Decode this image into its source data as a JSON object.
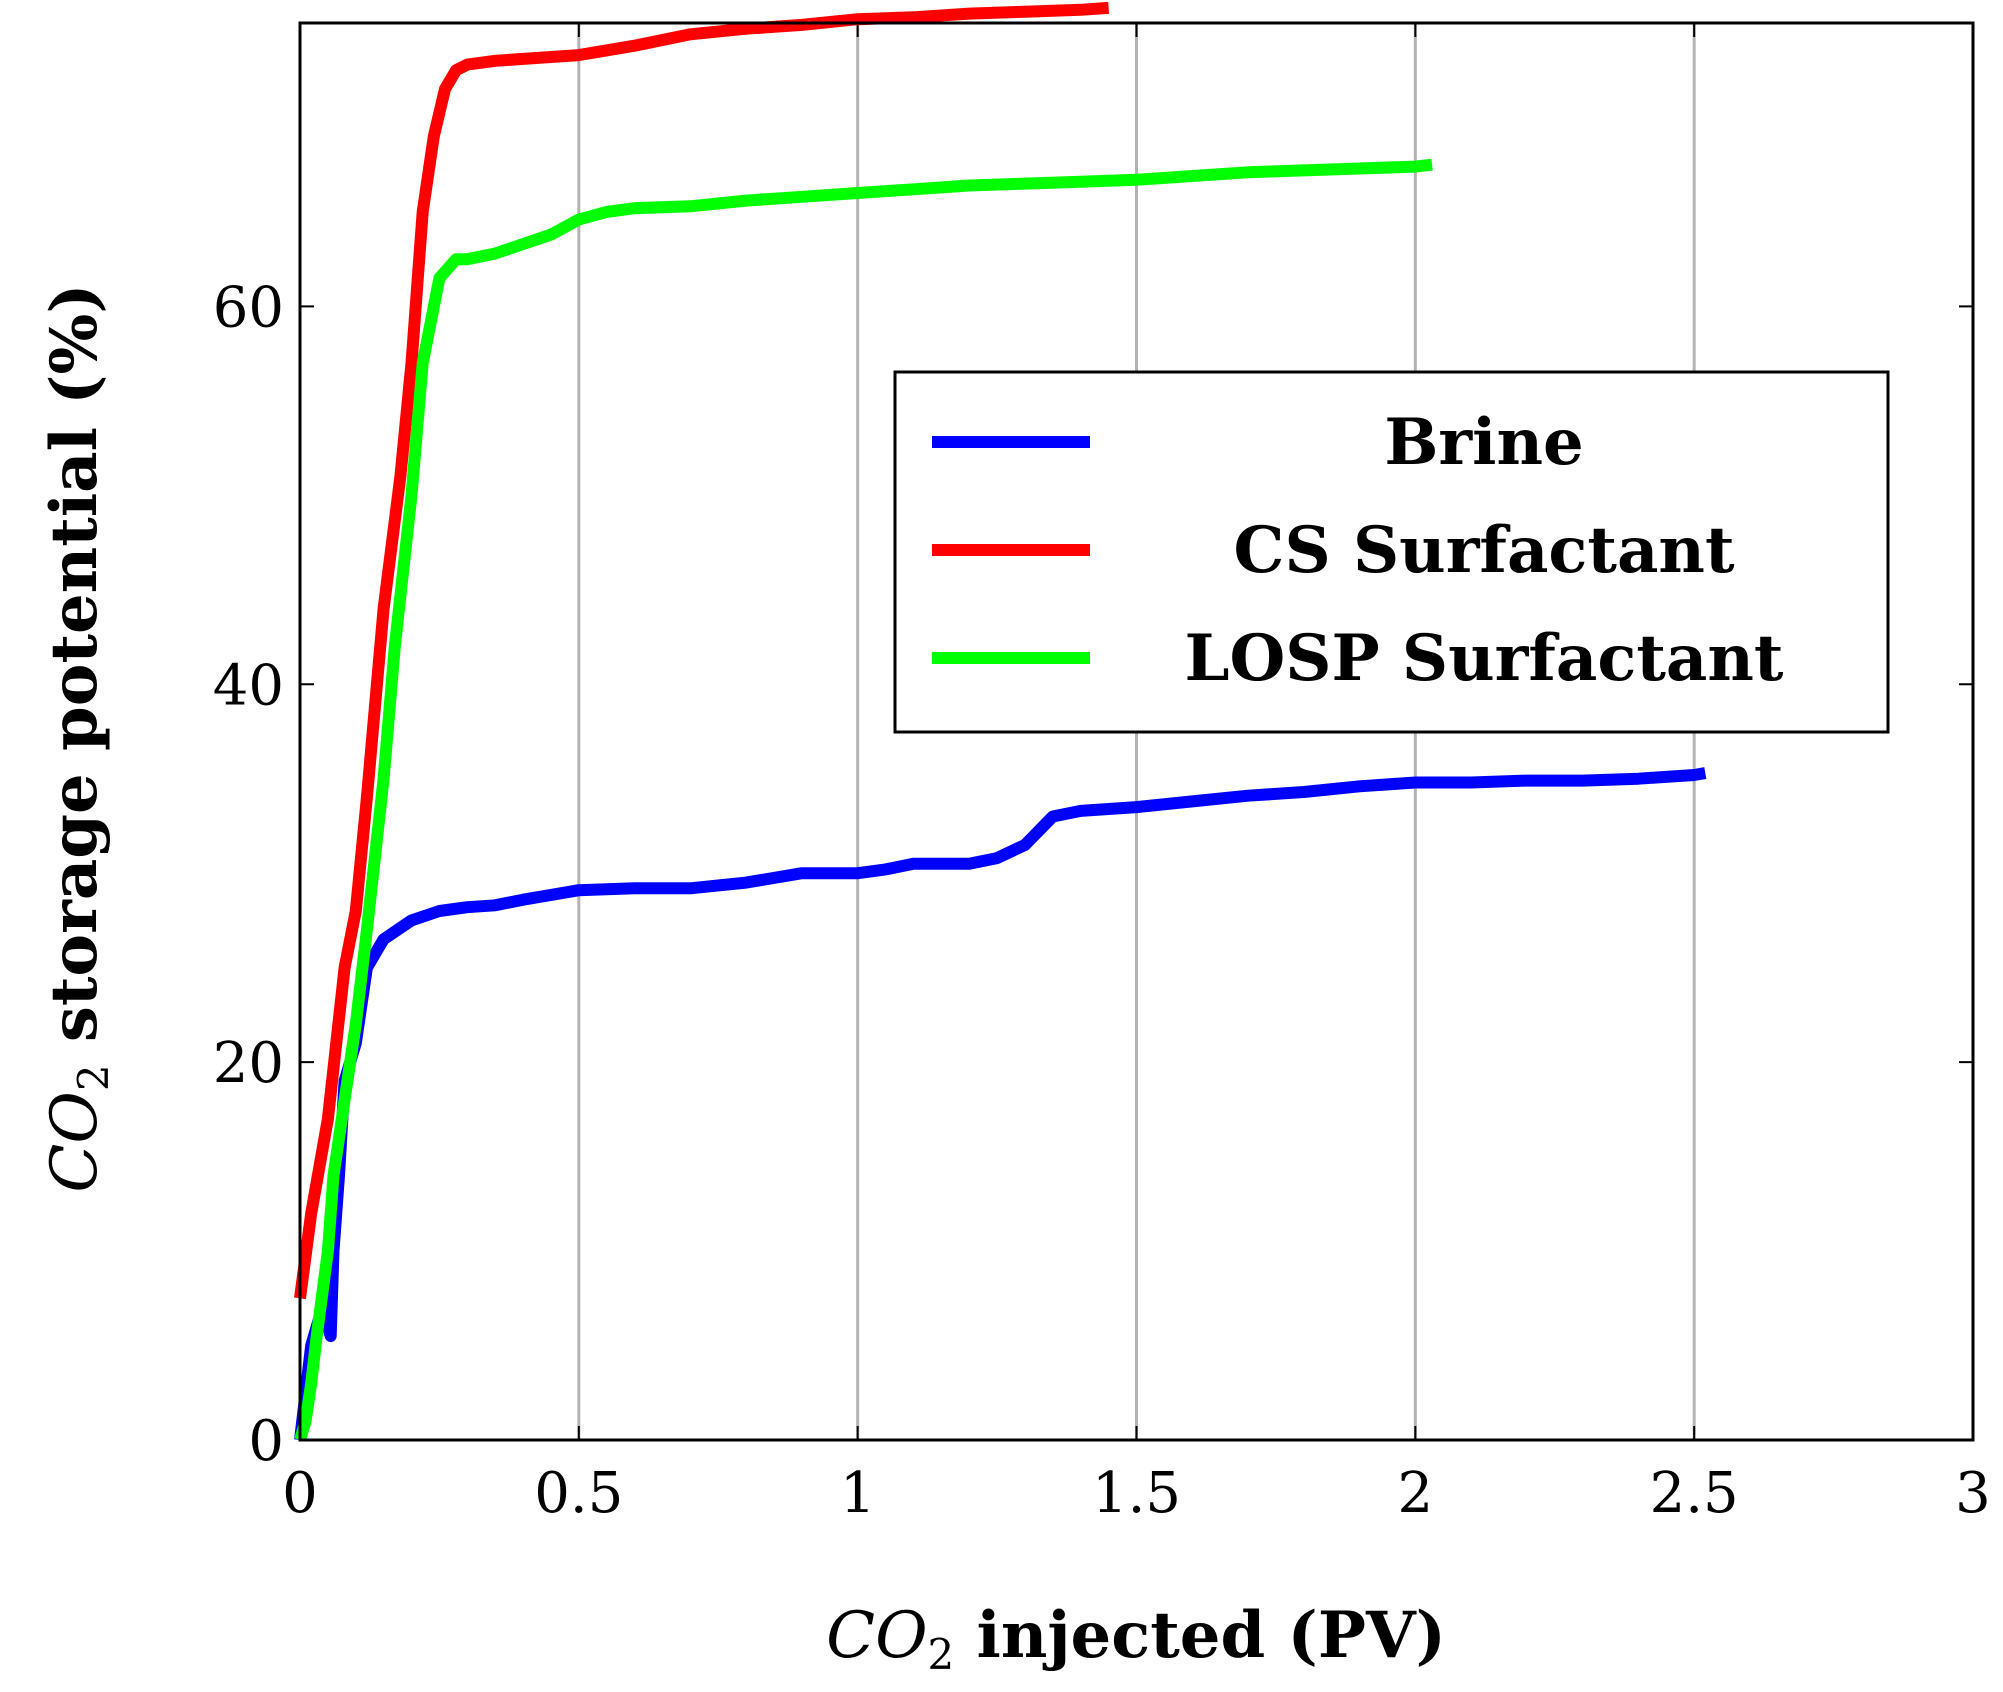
{
  "chart_data": {
    "type": "line",
    "title": "",
    "xlabel": {
      "symbol": "CO",
      "subscript": "2",
      "text": " injected (PV)"
    },
    "ylabel": {
      "symbol": "CO",
      "subscript": "2",
      "text": " storage potential (%)"
    },
    "xlim": [
      0,
      3
    ],
    "ylim": [
      0,
      75
    ],
    "xticks": [
      0,
      0.5,
      1,
      1.5,
      2,
      2.5,
      3
    ],
    "xtick_labels": [
      "0",
      "0.5",
      "1",
      "1.5",
      "2",
      "2.5",
      "3"
    ],
    "yticks": [
      0,
      20,
      40,
      60
    ],
    "ytick_labels": [
      "0",
      "20",
      "40",
      "60"
    ],
    "grid": "vertical",
    "legend_position": "center-right",
    "series": [
      {
        "name": "Brine",
        "color": "#0000ff",
        "x": [
          0,
          0.02,
          0.04,
          0.05,
          0.055,
          0.06,
          0.07,
          0.08,
          0.1,
          0.12,
          0.15,
          0.2,
          0.25,
          0.3,
          0.35,
          0.4,
          0.5,
          0.6,
          0.7,
          0.8,
          0.9,
          1.0,
          1.05,
          1.1,
          1.2,
          1.25,
          1.3,
          1.35,
          1.4,
          1.5,
          1.6,
          1.7,
          1.8,
          1.9,
          2.0,
          2.1,
          2.2,
          2.3,
          2.4,
          2.5,
          2.52
        ],
        "y": [
          0,
          5,
          7,
          6,
          5.5,
          10,
          14,
          19,
          21,
          25,
          26.5,
          27.5,
          28,
          28.2,
          28.3,
          28.6,
          29.1,
          29.2,
          29.2,
          29.5,
          30,
          30,
          30.2,
          30.5,
          30.5,
          30.8,
          31.5,
          33,
          33.3,
          33.5,
          33.8,
          34.1,
          34.3,
          34.6,
          34.8,
          34.8,
          34.9,
          34.9,
          35,
          35.2,
          35.3
        ]
      },
      {
        "name": "CS Surfactant",
        "color": "#ff0000",
        "x": [
          0,
          0.02,
          0.05,
          0.08,
          0.1,
          0.12,
          0.15,
          0.18,
          0.2,
          0.22,
          0.24,
          0.26,
          0.28,
          0.3,
          0.35,
          0.4,
          0.5,
          0.6,
          0.7,
          0.8,
          0.9,
          1.0,
          1.1,
          1.2,
          1.3,
          1.4,
          1.45
        ],
        "y": [
          7.5,
          12,
          17,
          25,
          28,
          34,
          44,
          51,
          57,
          65,
          69,
          71.5,
          72.5,
          72.8,
          73,
          73.1,
          73.3,
          73.8,
          74.4,
          74.7,
          74.9,
          75.2,
          75.3,
          75.5,
          75.6,
          75.7,
          75.8
        ]
      },
      {
        "name": "LOSP Surfactant",
        "color": "#00ff00",
        "x": [
          0,
          0.01,
          0.02,
          0.03,
          0.05,
          0.06,
          0.08,
          0.1,
          0.12,
          0.15,
          0.17,
          0.2,
          0.22,
          0.25,
          0.28,
          0.3,
          0.35,
          0.4,
          0.45,
          0.5,
          0.55,
          0.6,
          0.7,
          0.8,
          0.9,
          1.0,
          1.1,
          1.2,
          1.3,
          1.4,
          1.5,
          1.6,
          1.7,
          1.8,
          1.9,
          2.0,
          2.03
        ],
        "y": [
          0,
          1,
          3,
          5.5,
          10,
          14,
          18,
          22,
          27,
          35,
          42,
          50,
          57,
          61.5,
          62.5,
          62.5,
          62.8,
          63.3,
          63.8,
          64.6,
          65,
          65.2,
          65.3,
          65.6,
          65.8,
          66,
          66.2,
          66.4,
          66.5,
          66.6,
          66.7,
          66.9,
          67.1,
          67.2,
          67.3,
          67.4,
          67.5
        ]
      }
    ]
  }
}
